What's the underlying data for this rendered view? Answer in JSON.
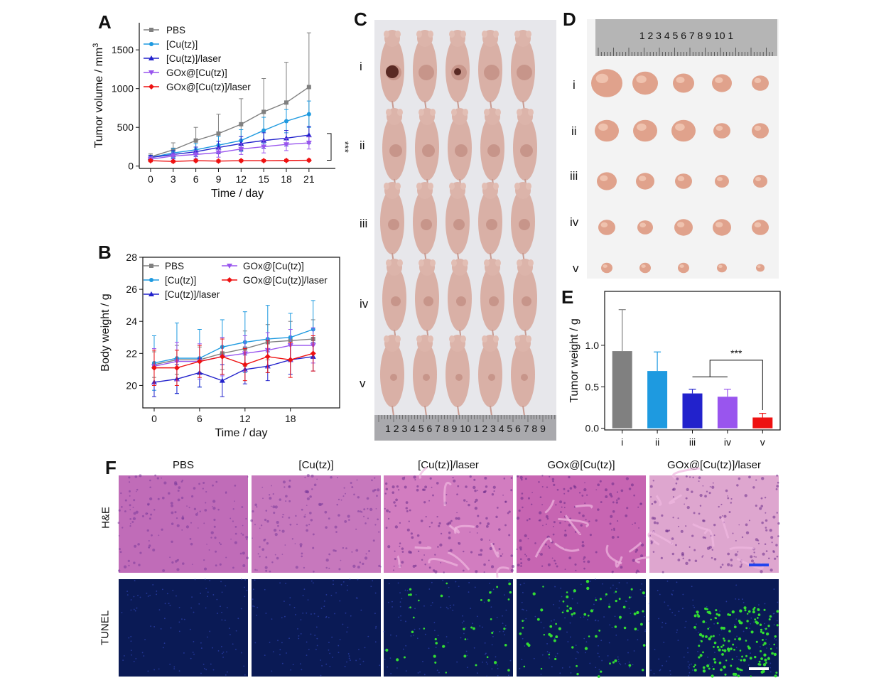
{
  "panel_labels": {
    "a": "A",
    "b": "B",
    "c": "C",
    "d": "D",
    "e": "E",
    "f": "F"
  },
  "colors": {
    "PBS": "#808080",
    "Cu_tz": "#1e9ae0",
    "Cu_tz_laser": "#2222cc",
    "GOx_Cu_tz": "#9955ee",
    "GOx_Cu_tz_laser": "#ee1111",
    "he_base": "#c56fb8",
    "tunel_base": "#0a1a55",
    "tunel_dot": "#33dd33",
    "scale_bar_he": "#2244ee",
    "scale_bar_tunel": "#ffffff"
  },
  "chart_data": [
    {
      "id": "A",
      "type": "line",
      "xlabel": "Time / day",
      "ylabel": "Tumor volume / mm",
      "ylabel_sup": "3",
      "xticks": [
        0,
        3,
        6,
        9,
        12,
        15,
        18,
        21
      ],
      "yticks": [
        0,
        500,
        1000,
        1500
      ],
      "xlim": [
        -1.5,
        24.5
      ],
      "ylim": [
        -30,
        1850
      ],
      "significance": "***",
      "x": [
        0,
        3,
        6,
        9,
        12,
        15,
        18,
        21
      ],
      "series": [
        {
          "name": "PBS",
          "color_key": "PBS",
          "marker": "square",
          "values": [
            120,
            210,
            330,
            420,
            540,
            700,
            820,
            1020
          ],
          "errors": [
            40,
            90,
            170,
            250,
            330,
            430,
            520,
            700
          ]
        },
        {
          "name": "[Cu(tz)]",
          "color_key": "Cu_tz",
          "marker": "circle",
          "values": [
            110,
            170,
            210,
            270,
            330,
            460,
            580,
            670
          ],
          "errors": [
            30,
            60,
            80,
            110,
            140,
            170,
            150,
            170
          ]
        },
        {
          "name": "[Cu(tz)]/laser",
          "color_key": "Cu_tz_laser",
          "marker": "triangle",
          "values": [
            110,
            150,
            185,
            240,
            290,
            330,
            360,
            400
          ],
          "errors": [
            30,
            50,
            60,
            80,
            90,
            100,
            100,
            110
          ]
        },
        {
          "name": "GOx@[Cu(tz)]",
          "color_key": "GOx_Cu_tz",
          "marker": "triangle-down",
          "values": [
            90,
            130,
            150,
            175,
            220,
            250,
            280,
            300
          ],
          "errors": [
            30,
            40,
            50,
            60,
            70,
            80,
            80,
            80
          ]
        },
        {
          "name": "GOx@[Cu(tz)]/laser",
          "color_key": "GOx_Cu_tz_laser",
          "marker": "diamond",
          "values": [
            70,
            60,
            70,
            65,
            70,
            70,
            72,
            75
          ],
          "errors": [
            15,
            15,
            15,
            15,
            15,
            15,
            15,
            15
          ]
        }
      ]
    },
    {
      "id": "B",
      "type": "line",
      "xlabel": "Time / day",
      "ylabel": "Body weight / g",
      "xticks": [
        0,
        6,
        12,
        18
      ],
      "yticks": [
        20,
        22,
        24,
        26,
        28
      ],
      "xlim": [
        -1.5,
        24.5
      ],
      "ylim": [
        18.6,
        28
      ],
      "x": [
        0,
        3,
        6,
        9,
        12,
        15,
        18,
        21
      ],
      "series": [
        {
          "name": "PBS",
          "color_key": "PBS",
          "marker": "square",
          "values": [
            21.3,
            21.6,
            21.6,
            22.0,
            22.3,
            22.7,
            22.8,
            22.9
          ],
          "errors": [
            0.8,
            0.9,
            0.8,
            1.0,
            1.1,
            1.1,
            1.2,
            1.2
          ]
        },
        {
          "name": "[Cu(tz)]",
          "color_key": "Cu_tz",
          "marker": "circle",
          "values": [
            21.4,
            21.7,
            21.7,
            22.4,
            22.7,
            22.9,
            23.0,
            23.5
          ],
          "errors": [
            1.7,
            2.2,
            1.8,
            1.7,
            1.9,
            2.1,
            1.5,
            1.8
          ]
        },
        {
          "name": "[Cu(tz)]/laser",
          "color_key": "Cu_tz_laser",
          "marker": "triangle",
          "values": [
            20.2,
            20.4,
            20.8,
            20.3,
            21.0,
            21.2,
            21.6,
            21.8
          ],
          "errors": [
            0.9,
            0.9,
            0.9,
            1.0,
            0.9,
            0.9,
            0.9,
            0.9
          ]
        },
        {
          "name": "GOx@[Cu(tz)]",
          "color_key": "GOx_Cu_tz",
          "marker": "triangle-down",
          "values": [
            21.2,
            21.5,
            21.5,
            21.8,
            22.0,
            22.2,
            22.5,
            22.5
          ],
          "errors": [
            1.1,
            1.2,
            1.1,
            1.2,
            1.1,
            1.1,
            1.0,
            1.1
          ]
        },
        {
          "name": "GOx@[Cu(tz)]/laser",
          "color_key": "GOx_Cu_tz_laser",
          "marker": "diamond",
          "values": [
            21.1,
            21.1,
            21.5,
            21.8,
            21.3,
            21.8,
            21.6,
            22.0
          ],
          "errors": [
            1.1,
            1.1,
            1.0,
            1.1,
            1.0,
            1.0,
            1.1,
            1.1
          ]
        }
      ]
    },
    {
      "id": "E",
      "type": "bar",
      "categories": [
        "i",
        "ii",
        "iii",
        "iv",
        "v"
      ],
      "values": [
        0.93,
        0.69,
        0.42,
        0.38,
        0.13
      ],
      "errors": [
        0.5,
        0.23,
        0.05,
        0.09,
        0.05
      ],
      "color_keys": [
        "PBS",
        "Cu_tz",
        "Cu_tz_laser",
        "GOx_Cu_tz",
        "GOx_Cu_tz_laser"
      ],
      "ylabel": "Tumor weight / g",
      "yticks": [
        0.0,
        0.5,
        1.0
      ],
      "ylim": [
        -0.02,
        1.65
      ],
      "significance": "***"
    }
  ],
  "panel_c": {
    "row_labels": [
      "i",
      "ii",
      "iii",
      "iv",
      "v"
    ],
    "ruler_digits": "1 2 3 4 5 6 7 8 9 10 1 2 3 4 5 6 7 8 9"
  },
  "panel_d": {
    "row_labels": [
      "i",
      "ii",
      "iii",
      "iv",
      "v"
    ],
    "ruler_digits": "1 2 3 4 5 6 7 8 9 10 1"
  },
  "panel_f": {
    "columns": [
      "PBS",
      "[Cu(tz)]",
      "[Cu(tz)]/laser",
      "GOx@[Cu(tz)]",
      "GOx@[Cu(tz)]/laser"
    ],
    "rows": [
      "H&E",
      "TUNEL"
    ]
  }
}
